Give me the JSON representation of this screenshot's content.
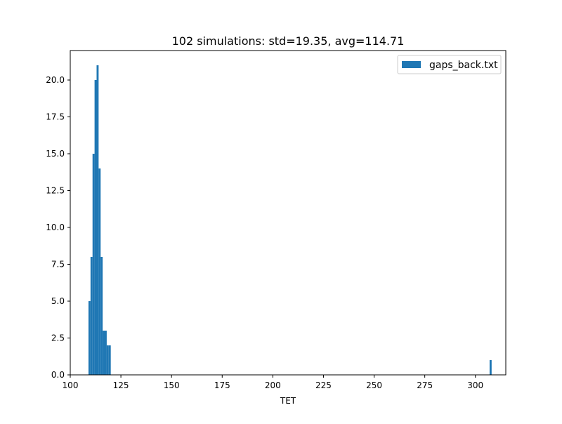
{
  "chart_data": {
    "type": "bar",
    "title": "102 simulations: std=19.35, avg=114.71",
    "xlabel": "TET",
    "ylabel": "",
    "xlim": [
      100,
      315
    ],
    "ylim": [
      0,
      22
    ],
    "xticks": [
      100,
      125,
      150,
      175,
      200,
      225,
      250,
      275,
      300
    ],
    "xtick_labels": [
      "100",
      "125",
      "150",
      "175",
      "200",
      "225",
      "250",
      "275",
      "300"
    ],
    "yticks": [
      0,
      2.5,
      5,
      7.5,
      10,
      12.5,
      15,
      17.5,
      20
    ],
    "ytick_labels": [
      "0.0",
      "2.5",
      "5.0",
      "7.5",
      "10.0",
      "12.5",
      "15.0",
      "17.5",
      "20.0"
    ],
    "grid": false,
    "legend_position": "upper right",
    "series": [
      {
        "name": "gaps_back.txt",
        "color": "#1f77b4",
        "bins": [
          {
            "x0": 109.0,
            "x1": 110.0,
            "count": 5
          },
          {
            "x0": 110.0,
            "x1": 111.0,
            "count": 8
          },
          {
            "x0": 111.0,
            "x1": 112.0,
            "count": 15
          },
          {
            "x0": 112.0,
            "x1": 113.0,
            "count": 20
          },
          {
            "x0": 113.0,
            "x1": 114.0,
            "count": 21
          },
          {
            "x0": 114.0,
            "x1": 115.0,
            "count": 14
          },
          {
            "x0": 115.0,
            "x1": 116.0,
            "count": 8
          },
          {
            "x0": 116.0,
            "x1": 117.0,
            "count": 3
          },
          {
            "x0": 117.0,
            "x1": 118.0,
            "count": 3
          },
          {
            "x0": 118.0,
            "x1": 119.0,
            "count": 2
          },
          {
            "x0": 119.0,
            "x1": 120.0,
            "count": 2
          },
          {
            "x0": 307.0,
            "x1": 308.0,
            "count": 1
          }
        ]
      }
    ]
  }
}
